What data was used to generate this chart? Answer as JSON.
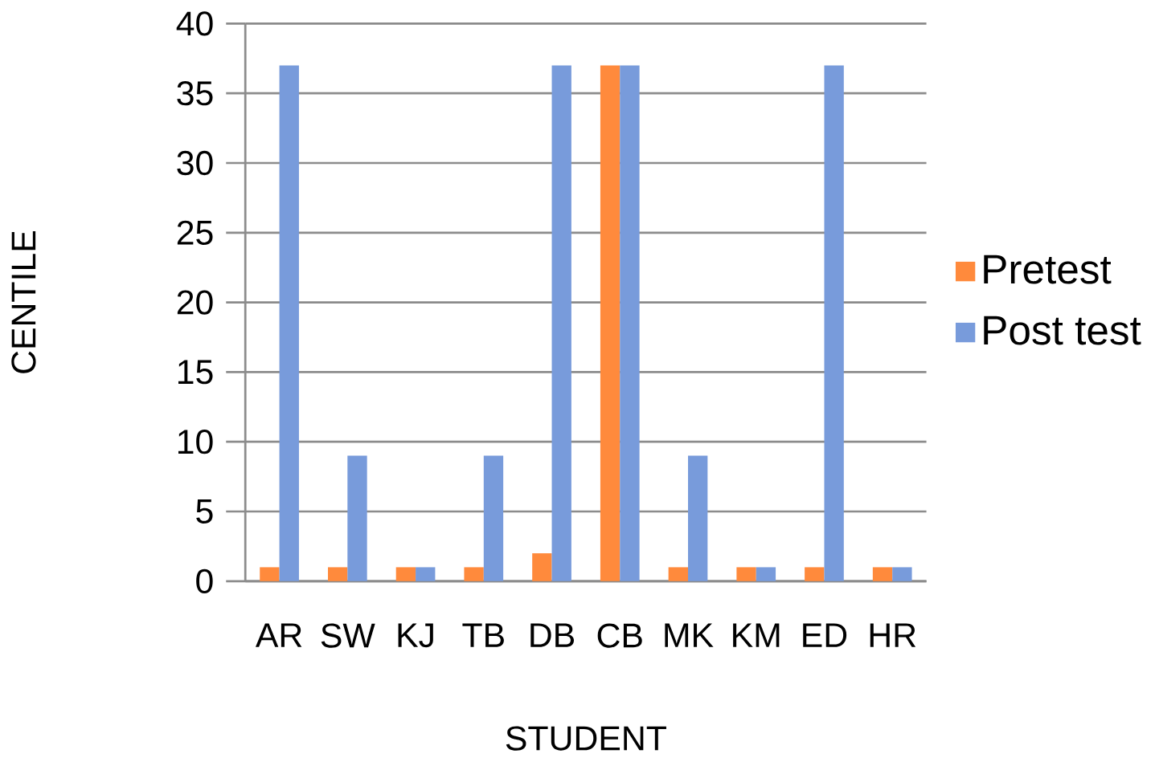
{
  "chart_data": {
    "type": "bar",
    "xlabel": "STUDENT",
    "ylabel": "CENTILE",
    "categories": [
      "AR",
      "SW",
      "KJ",
      "TB",
      "DB",
      "CB",
      "MK",
      "KM",
      "ED",
      "HR"
    ],
    "series": [
      {
        "name": "Pretest",
        "color": "#ff8a3c",
        "values": [
          1,
          1,
          1,
          1,
          2,
          37,
          1,
          1,
          1,
          1
        ]
      },
      {
        "name": "Post test",
        "color": "#789bdb",
        "values": [
          37,
          9,
          1,
          9,
          37,
          37,
          9,
          1,
          37,
          1
        ]
      }
    ],
    "ylim": [
      0,
      40
    ],
    "yticks": [
      0,
      5,
      10,
      15,
      20,
      25,
      30,
      35,
      40
    ],
    "grid": "y",
    "legend": "right"
  }
}
